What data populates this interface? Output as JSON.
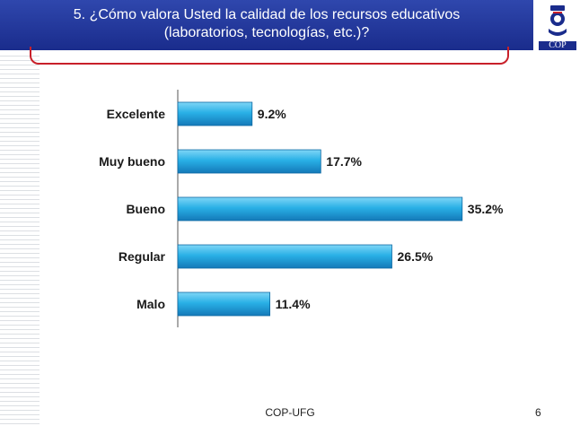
{
  "header": {
    "title_line1": "5. ¿Cómo valora Usted la calidad de los recursos educativos",
    "title_line2": "(laboratorios, tecnologías, etc.)?"
  },
  "logo": {
    "text": "COP",
    "icon": "university-crest-icon"
  },
  "footer": {
    "text": "COP-UFG",
    "page_number": "6"
  },
  "colors": {
    "header": "#1f3399",
    "bar": "#29b0e6",
    "bracket": "#c8202a"
  },
  "chart_data": {
    "type": "bar",
    "orientation": "horizontal",
    "categories": [
      "Excelente",
      "Muy bueno",
      "Bueno",
      "Regular",
      "Malo"
    ],
    "values": [
      9.2,
      17.7,
      35.2,
      26.5,
      11.4
    ],
    "value_labels": [
      "9.2%",
      "17.7%",
      "35.2%",
      "26.5%",
      "11.4%"
    ],
    "xlim": [
      0,
      40
    ],
    "grid": false,
    "legend": "none"
  }
}
